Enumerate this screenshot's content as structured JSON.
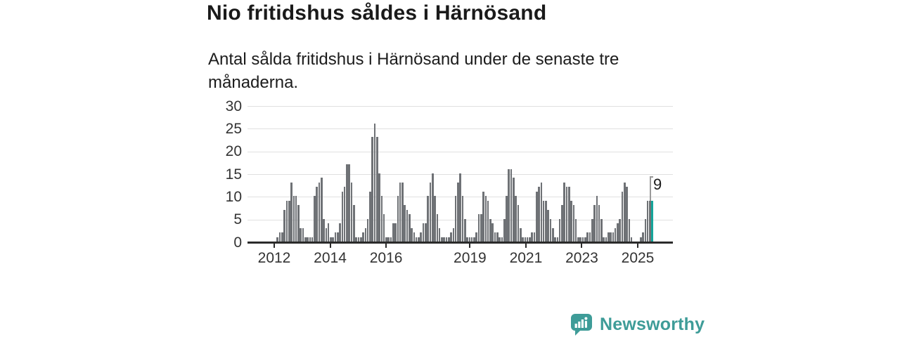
{
  "chart_data": {
    "type": "bar",
    "title": "Nio fritidshus såldes i Härnösand",
    "subtitle": "Antal sålda fritidshus i Härnösand under de senaste tre månaderna.",
    "start_year": 2012,
    "start_month": 1,
    "values": [
      0,
      1,
      2,
      2,
      7,
      9,
      9,
      13,
      10,
      10,
      8,
      3,
      3,
      1,
      1,
      1,
      1,
      10,
      12,
      13,
      14,
      5,
      3,
      4,
      1,
      1,
      2,
      2,
      4,
      11,
      12,
      17,
      17,
      13,
      8,
      1,
      1,
      1,
      2,
      3,
      5,
      11,
      23,
      26,
      23,
      15,
      10,
      6,
      1,
      1,
      1,
      4,
      4,
      10,
      13,
      13,
      8,
      7,
      6,
      3,
      2,
      1,
      1,
      2,
      4,
      4,
      10,
      13,
      15,
      10,
      6,
      3,
      1,
      1,
      1,
      1,
      2,
      3,
      10,
      13,
      15,
      10,
      5,
      1,
      1,
      1,
      1,
      2,
      6,
      6,
      11,
      10,
      9,
      5,
      4,
      2,
      2,
      1,
      1,
      5,
      10,
      16,
      16,
      14,
      10,
      8,
      3,
      1,
      1,
      1,
      1,
      2,
      2,
      11,
      12,
      13,
      9,
      9,
      7,
      5,
      3,
      1,
      1,
      5,
      8,
      13,
      12,
      12,
      9,
      8,
      5,
      1,
      1,
      1,
      1,
      2,
      2,
      5,
      8,
      10,
      8,
      5,
      1,
      1,
      2,
      2,
      2,
      3,
      4,
      5,
      11,
      13,
      12,
      5,
      1,
      0,
      0,
      0,
      1,
      2,
      5,
      9,
      9,
      9
    ],
    "highlight": {
      "position": "last",
      "value": 9,
      "label": "9"
    },
    "y_ticks": [
      0,
      5,
      10,
      15,
      20,
      25,
      30
    ],
    "ylim": [
      0,
      30
    ],
    "x_tick_labels": [
      "2012",
      "2014",
      "2016",
      "2019",
      "2021",
      "2023",
      "2025"
    ],
    "grid": "horizontal",
    "legend": "none",
    "colors": {
      "bar": "#6f7276",
      "highlight": "#14a59b",
      "gridline": "#e0e0e0",
      "axis": "#2b2b2b",
      "callout": "#9a9a9a"
    }
  },
  "branding": {
    "logo_text": "Newsworthy",
    "logo_icon": "bar-chart-speech-bubble-icon",
    "logo_color": "#3e9c98"
  }
}
